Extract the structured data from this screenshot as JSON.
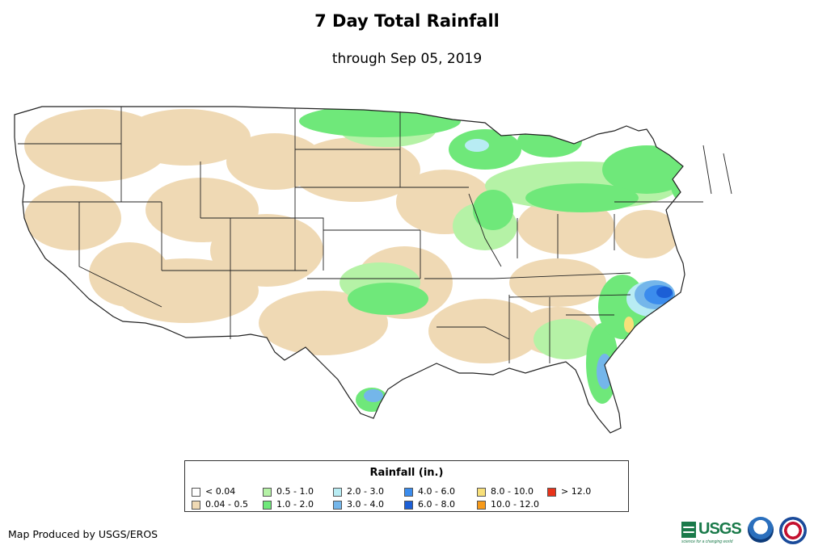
{
  "title": "7 Day Total Rainfall",
  "subtitle": "through Sep 05, 2019",
  "legend": {
    "title": "Rainfall (in.)",
    "items": [
      {
        "label": "< 0.04",
        "color": "#ffffff"
      },
      {
        "label": "0.04 - 0.5",
        "color": "#efd9b4"
      },
      {
        "label": "0.5 - 1.0",
        "color": "#b5f2a6"
      },
      {
        "label": "1.0 - 2.0",
        "color": "#6fe87a"
      },
      {
        "label": "2.0 - 3.0",
        "color": "#b8ecf3"
      },
      {
        "label": "3.0 - 4.0",
        "color": "#74b6ea"
      },
      {
        "label": "4.0 - 6.0",
        "color": "#3b8ced"
      },
      {
        "label": "6.0 - 8.0",
        "color": "#1c5fd6"
      },
      {
        "label": "8.0 - 10.0",
        "color": "#f8e07a"
      },
      {
        "label": "10.0 - 12.0",
        "color": "#f79a1a"
      },
      {
        "label": "> 12.0",
        "color": "#e8331a"
      }
    ]
  },
  "credit": "Map Produced by USGS/EROS",
  "logos": {
    "usgs": "USGS",
    "usgs_tagline": "science for a changing world",
    "noaa_icon": "noaa-logo-icon",
    "nws_icon": "nws-logo-icon"
  }
}
